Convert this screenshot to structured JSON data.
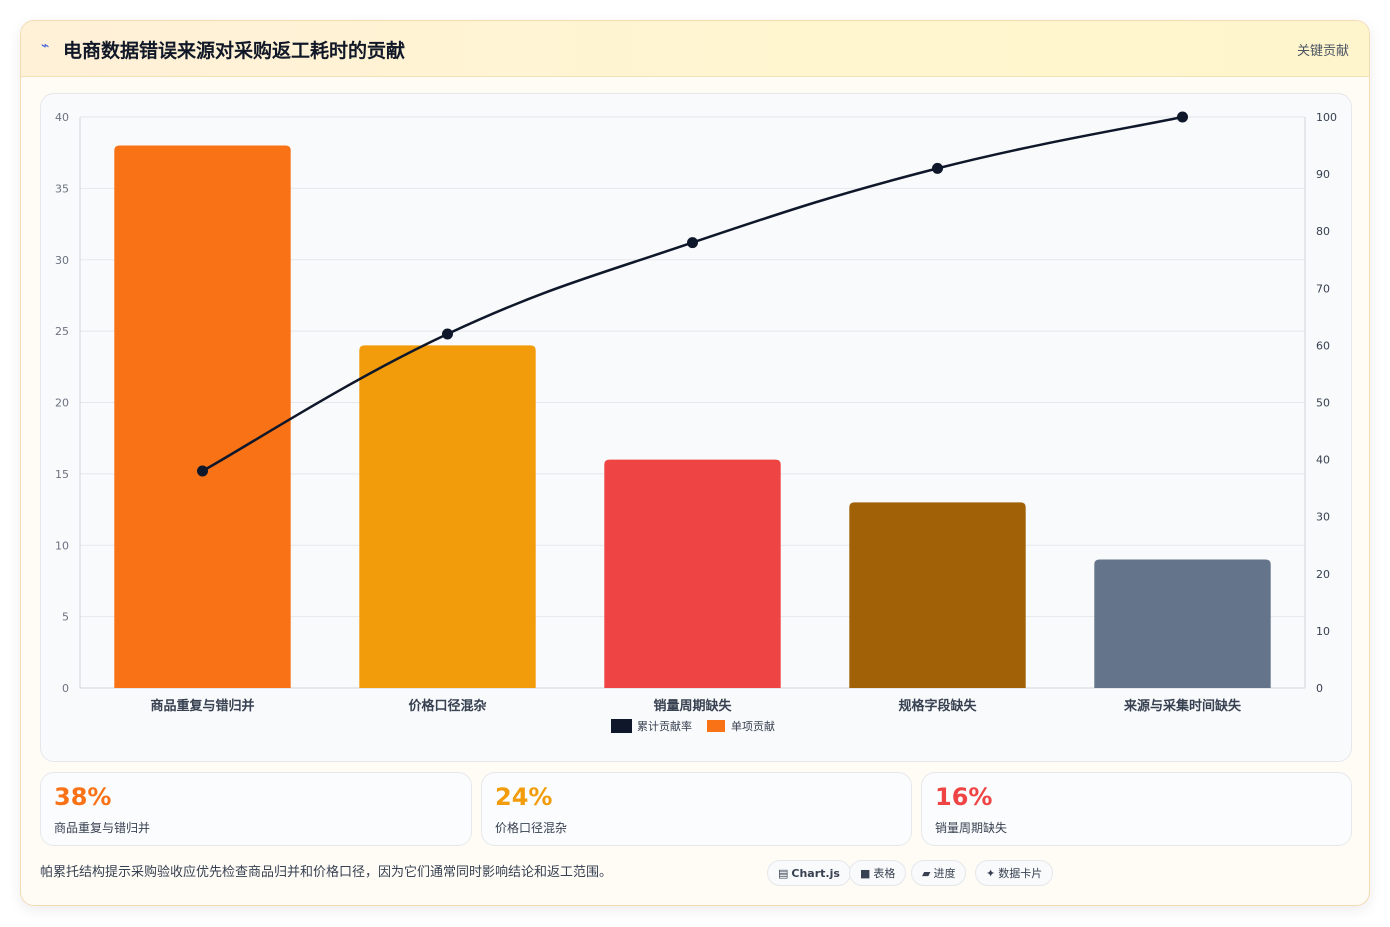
{
  "header": {
    "icon": "lightning-icon",
    "title": "电商数据错误来源对采购返工耗时的贡献",
    "tag": "关键贡献"
  },
  "chart_data": {
    "type": "bar",
    "categories": [
      "商品重复与错归并",
      "价格口径混杂",
      "销量周期缺失",
      "规格字段缺失",
      "来源与采集时间缺失"
    ],
    "series": [
      {
        "name": "单项贡献",
        "type": "bar",
        "axis": "left",
        "values": [
          38,
          24,
          16,
          13,
          9
        ],
        "colors": [
          "#f97316",
          "#f39c0b",
          "#ef4444",
          "#a16207",
          "#64748b"
        ]
      },
      {
        "name": "累计贡献率",
        "type": "line",
        "axis": "right",
        "values": [
          38,
          62,
          78,
          91,
          100
        ],
        "color": "#0f172a"
      }
    ],
    "y_left": {
      "min": 0,
      "max": 40,
      "ticks": [
        "0",
        "5",
        "10",
        "15",
        "20",
        "25",
        "30",
        "35",
        "40"
      ]
    },
    "y_right": {
      "min": 0,
      "max": 100,
      "ticks": [
        "0",
        "10",
        "20",
        "30",
        "40",
        "50",
        "60",
        "70",
        "80",
        "90",
        "100"
      ]
    },
    "legend": [
      "累计贡献率",
      "单项贡献"
    ],
    "legend_colors": [
      "#0f172a",
      "#f97316"
    ],
    "legend_position": "bottom",
    "grid": true
  },
  "stats": [
    {
      "value": "38%",
      "label": "商品重复与错归并",
      "color": "#f97316"
    },
    {
      "value": "24%",
      "label": "价格口径混杂",
      "color": "#f39c0b"
    },
    {
      "value": "16%",
      "label": "销量周期缺失",
      "color": "#ef4444"
    }
  ],
  "note": "帕累托结构提示采购验收应优先检查商品归并和价格口径，因为它们通常同时影响结论和返工范围。",
  "chips": [
    {
      "icon": "▤",
      "label": "Chart.js"
    },
    {
      "icon": "■",
      "label": "表格"
    },
    {
      "icon": "▰",
      "label": "进度"
    },
    {
      "icon": "✦",
      "label": "数据卡片"
    }
  ]
}
